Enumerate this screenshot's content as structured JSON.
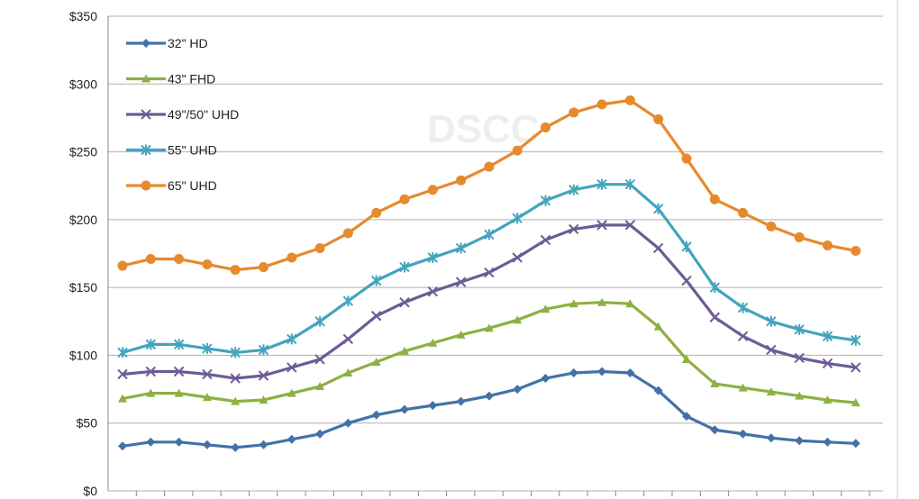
{
  "chart_data": {
    "type": "line",
    "watermark": "DSCC",
    "x": [
      1,
      2,
      3,
      4,
      5,
      6,
      7,
      8,
      9,
      10,
      11,
      12,
      13,
      14,
      15,
      16,
      17,
      18,
      19,
      20,
      21,
      22,
      23,
      24,
      25,
      26,
      27
    ],
    "ylim": [
      0,
      350
    ],
    "yticks": [
      0,
      50,
      100,
      150,
      200,
      250,
      300,
      350
    ],
    "ytick_labels": [
      "$0",
      "$50",
      "$100",
      "$150",
      "$200",
      "$250",
      "$300",
      "$350"
    ],
    "grid": true,
    "legend_position": "top-left",
    "series": [
      {
        "name": "32\" HD",
        "color": "#4472a8",
        "marker": "diamond",
        "values": [
          33,
          36,
          36,
          34,
          32,
          34,
          38,
          42,
          50,
          56,
          60,
          63,
          66,
          70,
          75,
          83,
          87,
          88,
          87,
          74,
          55,
          45,
          42,
          39,
          37,
          36,
          35
        ]
      },
      {
        "name": "43\" FHD",
        "color": "#8db043",
        "marker": "triangle",
        "values": [
          68,
          72,
          72,
          69,
          66,
          67,
          72,
          77,
          87,
          95,
          103,
          109,
          115,
          120,
          126,
          134,
          138,
          139,
          138,
          121,
          97,
          79,
          76,
          73,
          70,
          67,
          65
        ]
      },
      {
        "name": "49\"/50\" UHD",
        "color": "#6e5b96",
        "marker": "x",
        "values": [
          86,
          88,
          88,
          86,
          83,
          85,
          91,
          97,
          112,
          129,
          139,
          147,
          154,
          161,
          172,
          185,
          193,
          196,
          196,
          179,
          155,
          128,
          114,
          104,
          98,
          94,
          91
        ]
      },
      {
        "name": "55\" UHD",
        "color": "#44a4be",
        "marker": "star",
        "values": [
          102,
          108,
          108,
          105,
          102,
          104,
          112,
          125,
          140,
          155,
          165,
          172,
          179,
          189,
          201,
          214,
          222,
          226,
          226,
          208,
          180,
          150,
          135,
          125,
          119,
          114,
          111
        ]
      },
      {
        "name": "65\" UHD",
        "color": "#e68a2e",
        "marker": "circle",
        "values": [
          166,
          171,
          171,
          167,
          163,
          165,
          172,
          179,
          190,
          205,
          215,
          222,
          229,
          239,
          251,
          268,
          279,
          285,
          288,
          274,
          245,
          215,
          205,
          195,
          187,
          181,
          177
        ]
      }
    ]
  }
}
